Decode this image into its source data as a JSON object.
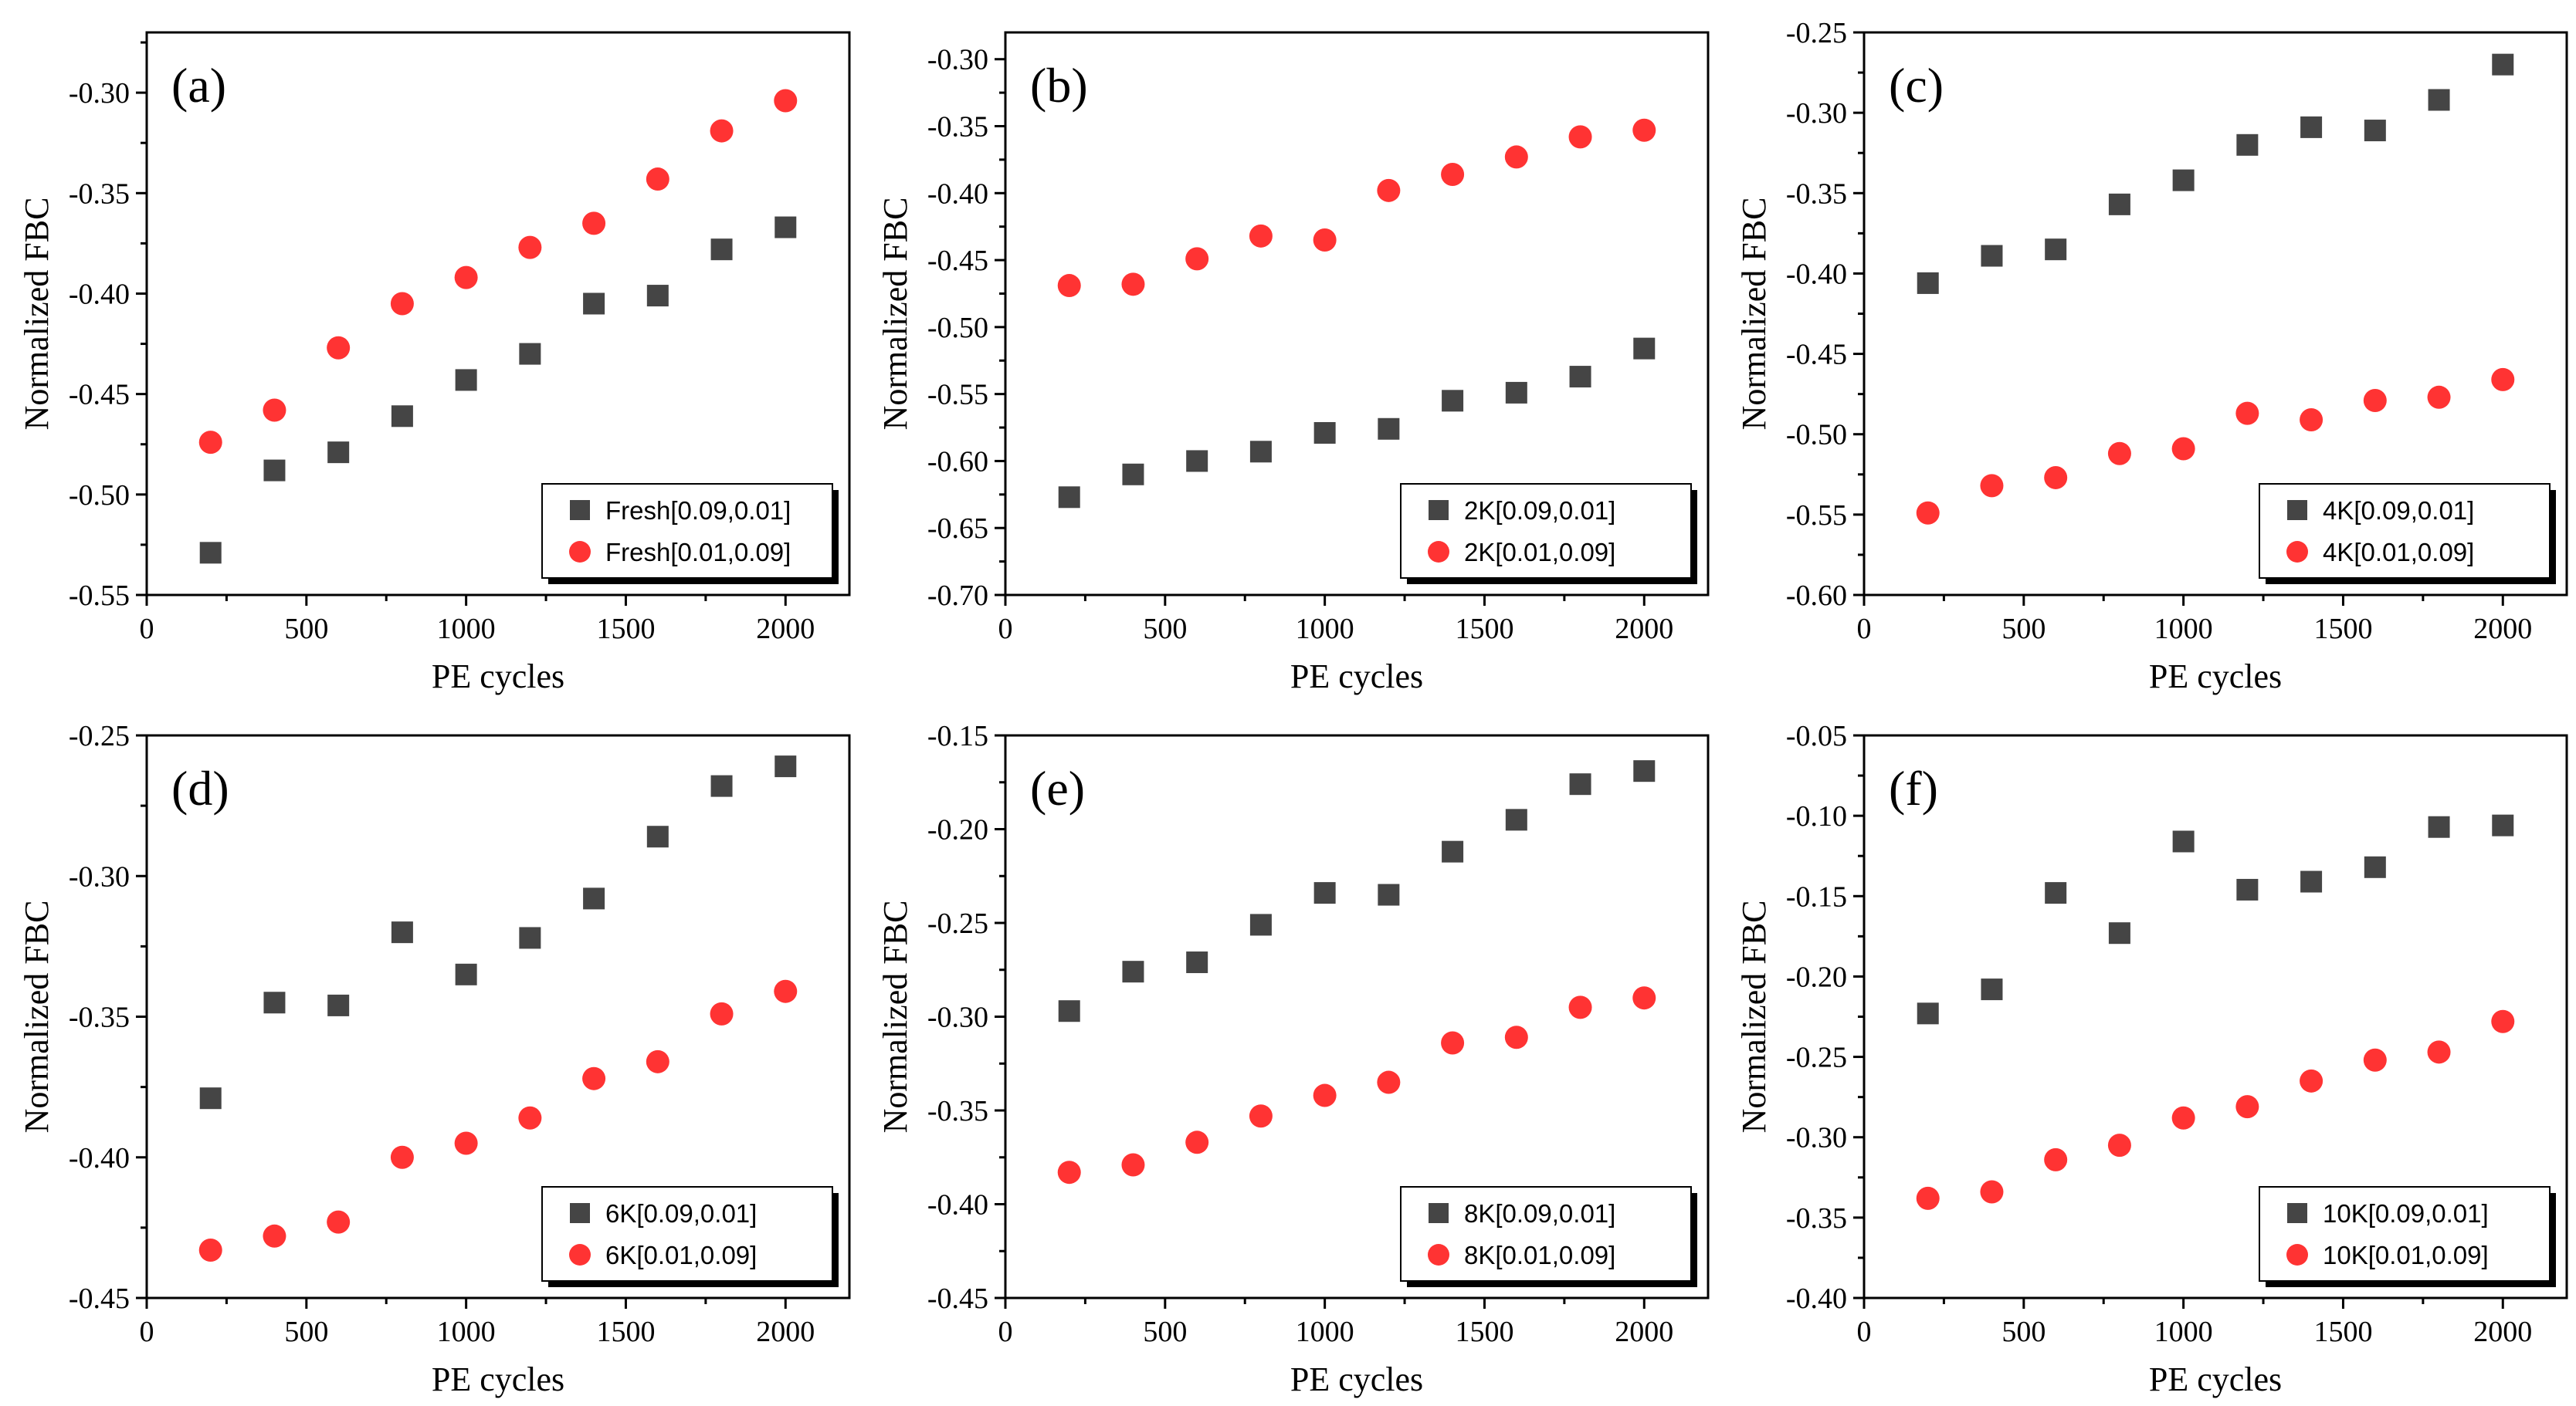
{
  "colors": {
    "series1": "#454545",
    "series2": "#ff3333",
    "axis": "#000000",
    "legend_shadow": "#000000"
  },
  "chart_data": [
    {
      "type": "scatter",
      "panel": "(a)",
      "xlabel": "PE cycles",
      "ylabel": "Normalized FBC",
      "xlim": [
        0,
        2200
      ],
      "ylim": [
        -0.55,
        -0.27
      ],
      "xticks": [
        "0",
        "500",
        "1000",
        "1500",
        "2000"
      ],
      "yticks": [
        "-0.55",
        "-0.50",
        "-0.45",
        "-0.40",
        "-0.35",
        "-0.30"
      ],
      "x": [
        200,
        400,
        600,
        800,
        1000,
        1200,
        1400,
        1600,
        1800,
        2000
      ],
      "series": [
        {
          "name": "Fresh[0.09,0.01]",
          "marker": "square",
          "values": [
            -0.529,
            -0.488,
            -0.479,
            -0.461,
            -0.443,
            -0.43,
            -0.405,
            -0.401,
            -0.378,
            -0.367
          ]
        },
        {
          "name": "Fresh[0.01,0.09]",
          "marker": "circle",
          "values": [
            -0.474,
            -0.458,
            -0.427,
            -0.405,
            -0.392,
            -0.377,
            -0.365,
            -0.343,
            -0.319,
            -0.304
          ]
        }
      ]
    },
    {
      "type": "scatter",
      "panel": "(b)",
      "xlabel": "PE cycles",
      "ylabel": "Normalized FBC",
      "xlim": [
        0,
        2200
      ],
      "ylim": [
        -0.7,
        -0.28
      ],
      "xticks": [
        "0",
        "500",
        "1000",
        "1500",
        "2000"
      ],
      "yticks": [
        "-0.70",
        "-0.65",
        "-0.60",
        "-0.55",
        "-0.50",
        "-0.45",
        "-0.40",
        "-0.35",
        "-0.30"
      ],
      "x": [
        200,
        400,
        600,
        800,
        1000,
        1200,
        1400,
        1600,
        1800,
        2000
      ],
      "series": [
        {
          "name": "2K[0.09,0.01]",
          "marker": "square",
          "values": [
            -0.627,
            -0.61,
            -0.6,
            -0.593,
            -0.579,
            -0.576,
            -0.555,
            -0.549,
            -0.537,
            -0.516
          ]
        },
        {
          "name": "2K[0.01,0.09]",
          "marker": "circle",
          "values": [
            -0.469,
            -0.468,
            -0.449,
            -0.432,
            -0.435,
            -0.398,
            -0.386,
            -0.373,
            -0.358,
            -0.353
          ]
        }
      ]
    },
    {
      "type": "scatter",
      "panel": "(c)",
      "xlabel": "PE cycles",
      "ylabel": "Normalized FBC",
      "xlim": [
        0,
        2200
      ],
      "ylim": [
        -0.6,
        -0.25
      ],
      "xticks": [
        "0",
        "500",
        "1000",
        "1500",
        "2000"
      ],
      "yticks": [
        "-0.60",
        "-0.55",
        "-0.50",
        "-0.45",
        "-0.40",
        "-0.35",
        "-0.30",
        "-0.25"
      ],
      "x": [
        200,
        400,
        600,
        800,
        1000,
        1200,
        1400,
        1600,
        1800,
        2000
      ],
      "series": [
        {
          "name": "4K[0.09,0.01]",
          "marker": "square",
          "values": [
            -0.406,
            -0.389,
            -0.385,
            -0.357,
            -0.342,
            -0.32,
            -0.309,
            -0.311,
            -0.292,
            -0.27
          ]
        },
        {
          "name": "4K[0.01,0.09]",
          "marker": "circle",
          "values": [
            -0.549,
            -0.532,
            -0.527,
            -0.512,
            -0.509,
            -0.487,
            -0.491,
            -0.479,
            -0.477,
            -0.466
          ]
        }
      ]
    },
    {
      "type": "scatter",
      "panel": "(d)",
      "xlabel": "PE cycles",
      "ylabel": "Normalized FBC",
      "xlim": [
        0,
        2200
      ],
      "ylim": [
        -0.45,
        -0.25
      ],
      "xticks": [
        "0",
        "500",
        "1000",
        "1500",
        "2000"
      ],
      "yticks": [
        "-0.45",
        "-0.40",
        "-0.35",
        "-0.30",
        "-0.25"
      ],
      "x": [
        200,
        400,
        600,
        800,
        1000,
        1200,
        1400,
        1600,
        1800,
        2000
      ],
      "series": [
        {
          "name": "6K[0.09,0.01]",
          "marker": "square",
          "values": [
            -0.379,
            -0.345,
            -0.346,
            -0.32,
            -0.335,
            -0.322,
            -0.308,
            -0.286,
            -0.268,
            -0.261
          ]
        },
        {
          "name": "6K[0.01,0.09]",
          "marker": "circle",
          "values": [
            -0.433,
            -0.428,
            -0.423,
            -0.4,
            -0.395,
            -0.386,
            -0.372,
            -0.366,
            -0.349,
            -0.341
          ]
        }
      ]
    },
    {
      "type": "scatter",
      "panel": "(e)",
      "xlabel": "PE cycles",
      "ylabel": "Normalized FBC",
      "xlim": [
        0,
        2200
      ],
      "ylim": [
        -0.45,
        -0.15
      ],
      "xticks": [
        "0",
        "500",
        "1000",
        "1500",
        "2000"
      ],
      "yticks": [
        "-0.45",
        "-0.40",
        "-0.35",
        "-0.30",
        "-0.25",
        "-0.20",
        "-0.15"
      ],
      "x": [
        200,
        400,
        600,
        800,
        1000,
        1200,
        1400,
        1600,
        1800,
        2000
      ],
      "series": [
        {
          "name": "8K[0.09,0.01]",
          "marker": "square",
          "values": [
            -0.297,
            -0.276,
            -0.271,
            -0.251,
            -0.234,
            -0.235,
            -0.212,
            -0.195,
            -0.176,
            -0.169
          ]
        },
        {
          "name": "8K[0.01,0.09]",
          "marker": "circle",
          "values": [
            -0.383,
            -0.379,
            -0.367,
            -0.353,
            -0.342,
            -0.335,
            -0.314,
            -0.311,
            -0.295,
            -0.29
          ]
        }
      ]
    },
    {
      "type": "scatter",
      "panel": "(f)",
      "xlabel": "PE cycles",
      "ylabel": "Normalized FBC",
      "xlim": [
        0,
        2200
      ],
      "ylim": [
        -0.4,
        -0.05
      ],
      "xticks": [
        "0",
        "500",
        "1000",
        "1500",
        "2000"
      ],
      "yticks": [
        "-0.40",
        "-0.35",
        "-0.30",
        "-0.25",
        "-0.20",
        "-0.15",
        "-0.10",
        "-0.05"
      ],
      "x": [
        200,
        400,
        600,
        800,
        1000,
        1200,
        1400,
        1600,
        1800,
        2000
      ],
      "series": [
        {
          "name": "10K[0.09,0.01]",
          "marker": "square",
          "values": [
            -0.223,
            -0.208,
            -0.148,
            -0.173,
            -0.116,
            -0.146,
            -0.141,
            -0.132,
            -0.107,
            -0.106
          ]
        },
        {
          "name": "10K[0.01,0.09]",
          "marker": "circle",
          "values": [
            -0.338,
            -0.334,
            -0.314,
            -0.305,
            -0.288,
            -0.281,
            -0.265,
            -0.252,
            -0.247,
            -0.228
          ]
        }
      ]
    }
  ]
}
